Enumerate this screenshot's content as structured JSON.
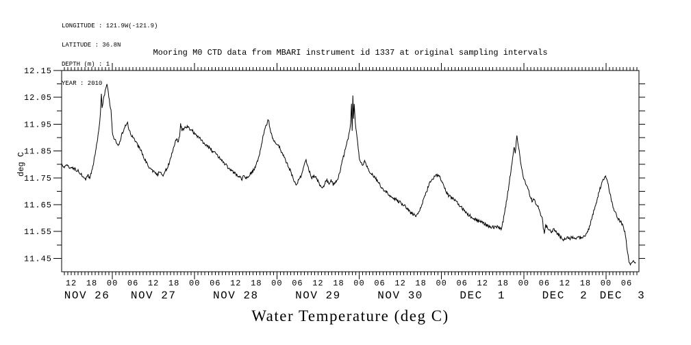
{
  "page": {
    "background": "#ffffff",
    "text_color": "#000000"
  },
  "header": {
    "meta_lines": [
      "LONGITUDE : 121.9W(-121.9)",
      "LATITUDE : 36.8N",
      "DEPTH (m) : 1",
      "YEAR : 2010"
    ]
  },
  "chart_data": {
    "type": "line",
    "title": "Mooring M0 CTD data from MBARI instrument id 1337 at original sampling intervals",
    "xlabel": "Water Temperature (deg C)",
    "ylabel": "deg C",
    "line_color": "#000000",
    "axis_color": "#000000",
    "ylim": [
      11.4,
      12.15
    ],
    "ytick_major": [
      11.45,
      11.55,
      11.65,
      11.75,
      11.85,
      11.95,
      12.05,
      12.15
    ],
    "ytick_minor_step": 0.05,
    "x_hour_range": [
      9.2,
      177.6
    ],
    "hour_tick_step": 1,
    "hour_label_step": 6,
    "hour_labels": [
      "00",
      "06",
      "12",
      "18"
    ],
    "days": [
      {
        "label": "NOV 26",
        "start_hour": 0
      },
      {
        "label": "NOV 27",
        "start_hour": 24
      },
      {
        "label": "NOV 28",
        "start_hour": 48
      },
      {
        "label": "NOV 29",
        "start_hour": 72
      },
      {
        "label": "NOV 30",
        "start_hour": 96
      },
      {
        "label": "DEC  1",
        "start_hour": 120
      },
      {
        "label": "DEC  2",
        "start_hour": 144
      },
      {
        "label": "DEC  3",
        "start_hour": 168
      }
    ],
    "series": [
      {
        "name": "water-temperature-degC",
        "keypoints_hour_degc": [
          [
            9.2,
            11.8
          ],
          [
            10.0,
            11.79
          ],
          [
            10.8,
            11.8
          ],
          [
            11.6,
            11.785
          ],
          [
            12.4,
            11.79
          ],
          [
            13.2,
            11.78
          ],
          [
            14.0,
            11.775
          ],
          [
            14.8,
            11.765
          ],
          [
            15.6,
            11.752
          ],
          [
            16.2,
            11.74
          ],
          [
            16.8,
            11.76
          ],
          [
            17.4,
            11.748
          ],
          [
            18.0,
            11.775
          ],
          [
            18.7,
            11.82
          ],
          [
            19.4,
            11.872
          ],
          [
            20.0,
            11.92
          ],
          [
            20.5,
            11.985
          ],
          [
            20.8,
            12.06
          ],
          [
            21.0,
            12.005
          ],
          [
            21.4,
            12.04
          ],
          [
            21.9,
            12.075
          ],
          [
            22.3,
            12.1
          ],
          [
            22.7,
            12.082
          ],
          [
            23.1,
            12.04
          ],
          [
            23.6,
            12.0
          ],
          [
            24.0,
            11.92
          ],
          [
            24.6,
            11.895
          ],
          [
            25.2,
            11.88
          ],
          [
            25.7,
            11.868
          ],
          [
            26.4,
            11.895
          ],
          [
            27.0,
            11.92
          ],
          [
            27.6,
            11.94
          ],
          [
            28.1,
            11.945
          ],
          [
            28.45,
            11.958
          ],
          [
            28.8,
            11.93
          ],
          [
            29.3,
            11.915
          ],
          [
            30.0,
            11.9
          ],
          [
            30.8,
            11.885
          ],
          [
            31.6,
            11.868
          ],
          [
            32.6,
            11.845
          ],
          [
            33.5,
            11.818
          ],
          [
            34.4,
            11.795
          ],
          [
            35.2,
            11.78
          ],
          [
            36.2,
            11.77
          ],
          [
            37.2,
            11.763
          ],
          [
            38.0,
            11.775
          ],
          [
            38.8,
            11.758
          ],
          [
            39.6,
            11.778
          ],
          [
            40.2,
            11.792
          ],
          [
            41.0,
            11.822
          ],
          [
            41.8,
            11.86
          ],
          [
            42.6,
            11.895
          ],
          [
            43.1,
            11.885
          ],
          [
            43.6,
            11.902
          ],
          [
            43.9,
            11.955
          ],
          [
            44.3,
            11.925
          ],
          [
            44.9,
            11.935
          ],
          [
            45.5,
            11.942
          ],
          [
            46.3,
            11.936
          ],
          [
            47.3,
            11.925
          ],
          [
            48.3,
            11.91
          ],
          [
            49.4,
            11.898
          ],
          [
            50.6,
            11.882
          ],
          [
            51.8,
            11.868
          ],
          [
            53.0,
            11.852
          ],
          [
            54.2,
            11.838
          ],
          [
            55.4,
            11.822
          ],
          [
            56.6,
            11.805
          ],
          [
            57.8,
            11.788
          ],
          [
            59.0,
            11.775
          ],
          [
            60.0,
            11.765
          ],
          [
            61.0,
            11.755
          ],
          [
            61.8,
            11.745
          ],
          [
            62.4,
            11.76
          ],
          [
            63.0,
            11.748
          ],
          [
            63.7,
            11.752
          ],
          [
            64.4,
            11.768
          ],
          [
            65.0,
            11.775
          ],
          [
            65.7,
            11.79
          ],
          [
            66.4,
            11.815
          ],
          [
            67.1,
            11.85
          ],
          [
            67.8,
            11.895
          ],
          [
            68.5,
            11.935
          ],
          [
            69.2,
            11.955
          ],
          [
            69.5,
            11.97
          ],
          [
            69.8,
            11.945
          ],
          [
            70.2,
            11.92
          ],
          [
            70.7,
            11.9
          ],
          [
            71.3,
            11.885
          ],
          [
            72.0,
            11.878
          ],
          [
            72.8,
            11.862
          ],
          [
            73.6,
            11.84
          ],
          [
            74.4,
            11.82
          ],
          [
            75.2,
            11.795
          ],
          [
            76.0,
            11.775
          ],
          [
            76.8,
            11.745
          ],
          [
            77.6,
            11.722
          ],
          [
            78.2,
            11.74
          ],
          [
            78.8,
            11.752
          ],
          [
            79.4,
            11.772
          ],
          [
            80.0,
            11.8
          ],
          [
            80.5,
            11.812
          ],
          [
            81.0,
            11.79
          ],
          [
            81.6,
            11.768
          ],
          [
            82.2,
            11.75
          ],
          [
            82.8,
            11.758
          ],
          [
            83.4,
            11.752
          ],
          [
            84.0,
            11.738
          ],
          [
            84.7,
            11.72
          ],
          [
            85.4,
            11.712
          ],
          [
            86.0,
            11.73
          ],
          [
            86.6,
            11.74
          ],
          [
            87.2,
            11.726
          ],
          [
            87.8,
            11.74
          ],
          [
            88.4,
            11.726
          ],
          [
            89.0,
            11.734
          ],
          [
            89.6,
            11.742
          ],
          [
            90.4,
            11.775
          ],
          [
            91.2,
            11.818
          ],
          [
            92.0,
            11.858
          ],
          [
            92.6,
            11.888
          ],
          [
            93.1,
            11.915
          ],
          [
            93.5,
            11.952
          ],
          [
            93.75,
            12.03
          ],
          [
            93.95,
            11.93
          ],
          [
            94.15,
            12.058
          ],
          [
            94.35,
            11.972
          ],
          [
            94.55,
            12.02
          ],
          [
            94.85,
            11.962
          ],
          [
            95.2,
            11.918
          ],
          [
            95.6,
            11.872
          ],
          [
            96.0,
            11.828
          ],
          [
            96.5,
            11.805
          ],
          [
            97.0,
            11.8
          ],
          [
            97.6,
            11.812
          ],
          [
            98.2,
            11.792
          ],
          [
            99.0,
            11.77
          ],
          [
            99.8,
            11.762
          ],
          [
            100.6,
            11.75
          ],
          [
            101.4,
            11.736
          ],
          [
            102.2,
            11.72
          ],
          [
            103.0,
            11.706
          ],
          [
            104.0,
            11.695
          ],
          [
            105.0,
            11.685
          ],
          [
            106.0,
            11.676
          ],
          [
            107.0,
            11.666
          ],
          [
            108.0,
            11.658
          ],
          [
            109.0,
            11.65
          ],
          [
            110.0,
            11.634
          ],
          [
            111.0,
            11.62
          ],
          [
            111.8,
            11.615
          ],
          [
            112.7,
            11.61
          ],
          [
            113.5,
            11.625
          ],
          [
            114.3,
            11.65
          ],
          [
            115.1,
            11.68
          ],
          [
            116.0,
            11.712
          ],
          [
            116.8,
            11.736
          ],
          [
            117.6,
            11.75
          ],
          [
            118.3,
            11.756
          ],
          [
            119.0,
            11.76
          ],
          [
            119.6,
            11.75
          ],
          [
            120.2,
            11.738
          ],
          [
            120.8,
            11.718
          ],
          [
            121.5,
            11.696
          ],
          [
            122.2,
            11.682
          ],
          [
            123.0,
            11.676
          ],
          [
            123.8,
            11.668
          ],
          [
            124.6,
            11.658
          ],
          [
            125.6,
            11.645
          ],
          [
            126.6,
            11.626
          ],
          [
            127.6,
            11.615
          ],
          [
            128.6,
            11.606
          ],
          [
            129.6,
            11.598
          ],
          [
            130.6,
            11.59
          ],
          [
            131.6,
            11.585
          ],
          [
            132.6,
            11.578
          ],
          [
            133.6,
            11.57
          ],
          [
            134.4,
            11.565
          ],
          [
            135.2,
            11.566
          ],
          [
            136.0,
            11.57
          ],
          [
            136.7,
            11.563
          ],
          [
            137.4,
            11.56
          ],
          [
            138.0,
            11.59
          ],
          [
            138.6,
            11.635
          ],
          [
            139.2,
            11.682
          ],
          [
            139.8,
            11.735
          ],
          [
            140.4,
            11.79
          ],
          [
            140.9,
            11.838
          ],
          [
            141.2,
            11.86
          ],
          [
            141.5,
            11.842
          ],
          [
            141.8,
            11.882
          ],
          [
            142.0,
            11.91
          ],
          [
            142.3,
            11.882
          ],
          [
            142.7,
            11.85
          ],
          [
            143.2,
            11.8
          ],
          [
            143.7,
            11.765
          ],
          [
            144.2,
            11.738
          ],
          [
            144.7,
            11.728
          ],
          [
            145.2,
            11.71
          ],
          [
            145.8,
            11.686
          ],
          [
            146.4,
            11.666
          ],
          [
            147.0,
            11.668
          ],
          [
            147.6,
            11.655
          ],
          [
            148.2,
            11.64
          ],
          [
            148.8,
            11.616
          ],
          [
            149.4,
            11.6
          ],
          [
            149.7,
            11.566
          ],
          [
            150.0,
            11.542
          ],
          [
            150.4,
            11.572
          ],
          [
            150.9,
            11.565
          ],
          [
            151.5,
            11.556
          ],
          [
            152.1,
            11.55
          ],
          [
            152.7,
            11.56
          ],
          [
            153.3,
            11.55
          ],
          [
            154.0,
            11.54
          ],
          [
            154.7,
            11.53
          ],
          [
            155.4,
            11.516
          ],
          [
            156.1,
            11.525
          ],
          [
            156.8,
            11.53
          ],
          [
            157.5,
            11.524
          ],
          [
            158.3,
            11.53
          ],
          [
            159.1,
            11.525
          ],
          [
            159.9,
            11.53
          ],
          [
            160.7,
            11.524
          ],
          [
            161.5,
            11.53
          ],
          [
            162.3,
            11.54
          ],
          [
            163.0,
            11.56
          ],
          [
            163.7,
            11.59
          ],
          [
            164.4,
            11.625
          ],
          [
            165.1,
            11.655
          ],
          [
            165.8,
            11.69
          ],
          [
            166.5,
            11.72
          ],
          [
            167.1,
            11.74
          ],
          [
            167.6,
            11.75
          ],
          [
            168.0,
            11.756
          ],
          [
            168.5,
            11.736
          ],
          [
            169.0,
            11.7
          ],
          [
            169.6,
            11.666
          ],
          [
            170.2,
            11.636
          ],
          [
            170.8,
            11.616
          ],
          [
            171.4,
            11.6
          ],
          [
            172.0,
            11.59
          ],
          [
            172.6,
            11.58
          ],
          [
            173.1,
            11.566
          ],
          [
            173.5,
            11.55
          ],
          [
            173.9,
            11.51
          ],
          [
            174.3,
            11.468
          ],
          [
            174.7,
            11.44
          ],
          [
            175.1,
            11.43
          ],
          [
            175.5,
            11.436
          ],
          [
            176.0,
            11.442
          ],
          [
            176.6,
            11.436
          ]
        ]
      }
    ],
    "noise": {
      "amplitude_deg": 0.006,
      "step_hours": 0.15,
      "seed": 1337
    },
    "grid": false,
    "legend": false
  }
}
